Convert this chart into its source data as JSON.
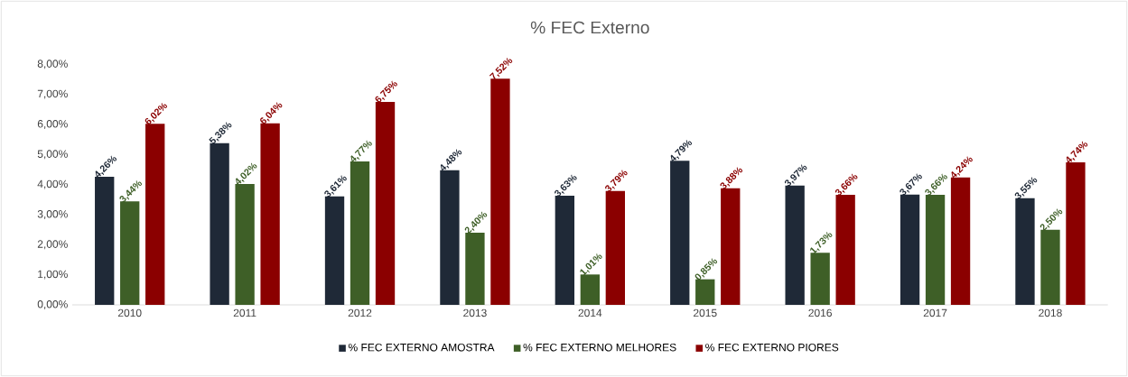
{
  "chart_data": {
    "type": "bar",
    "title": "% FEC Externo",
    "categories": [
      "2010",
      "2011",
      "2012",
      "2013",
      "2014",
      "2015",
      "2016",
      "2017",
      "2018"
    ],
    "series": [
      {
        "name": "% FEC EXTERNO AMOSTRA",
        "color": "#1f2937",
        "values": [
          4.26,
          5.38,
          3.61,
          4.48,
          3.63,
          4.79,
          3.97,
          3.67,
          3.55
        ],
        "value_labels": [
          "4,26%",
          "5,38%",
          "3,61%",
          "4,48%",
          "3,63%",
          "4,79%",
          "3,97%",
          "3,67%",
          "3,55%"
        ]
      },
      {
        "name": "% FEC EXTERNO MELHORES",
        "color": "#3e5f27",
        "values": [
          3.44,
          4.02,
          4.77,
          2.4,
          1.01,
          0.85,
          1.73,
          3.66,
          2.5
        ],
        "value_labels": [
          "3,44%",
          "4,02%",
          "4,77%",
          "2,40%",
          "1,01%",
          "0,85%",
          "1,73%",
          "3,66%",
          "2,50%"
        ]
      },
      {
        "name": "% FEC EXTERNO PIORES",
        "color": "#8b0000",
        "values": [
          6.02,
          6.04,
          6.75,
          7.52,
          3.79,
          3.88,
          3.66,
          4.24,
          4.74
        ],
        "value_labels": [
          "6,02%",
          "6,04%",
          "6,75%",
          "7,52%",
          "3,79%",
          "3,88%",
          "3,66%",
          "4,24%",
          "4,74%"
        ]
      }
    ],
    "ylim": [
      0,
      8
    ],
    "yticks": [
      {
        "value": 0,
        "label": "0,00%"
      },
      {
        "value": 1,
        "label": "1,00%"
      },
      {
        "value": 2,
        "label": "2,00%"
      },
      {
        "value": 3,
        "label": "3,00%"
      },
      {
        "value": 4,
        "label": "4,00%"
      },
      {
        "value": 5,
        "label": "5,00%"
      },
      {
        "value": 6,
        "label": "6,00%"
      },
      {
        "value": 7,
        "label": "7,00%"
      },
      {
        "value": 8,
        "label": "8,00%"
      }
    ],
    "legend": "bottom"
  }
}
